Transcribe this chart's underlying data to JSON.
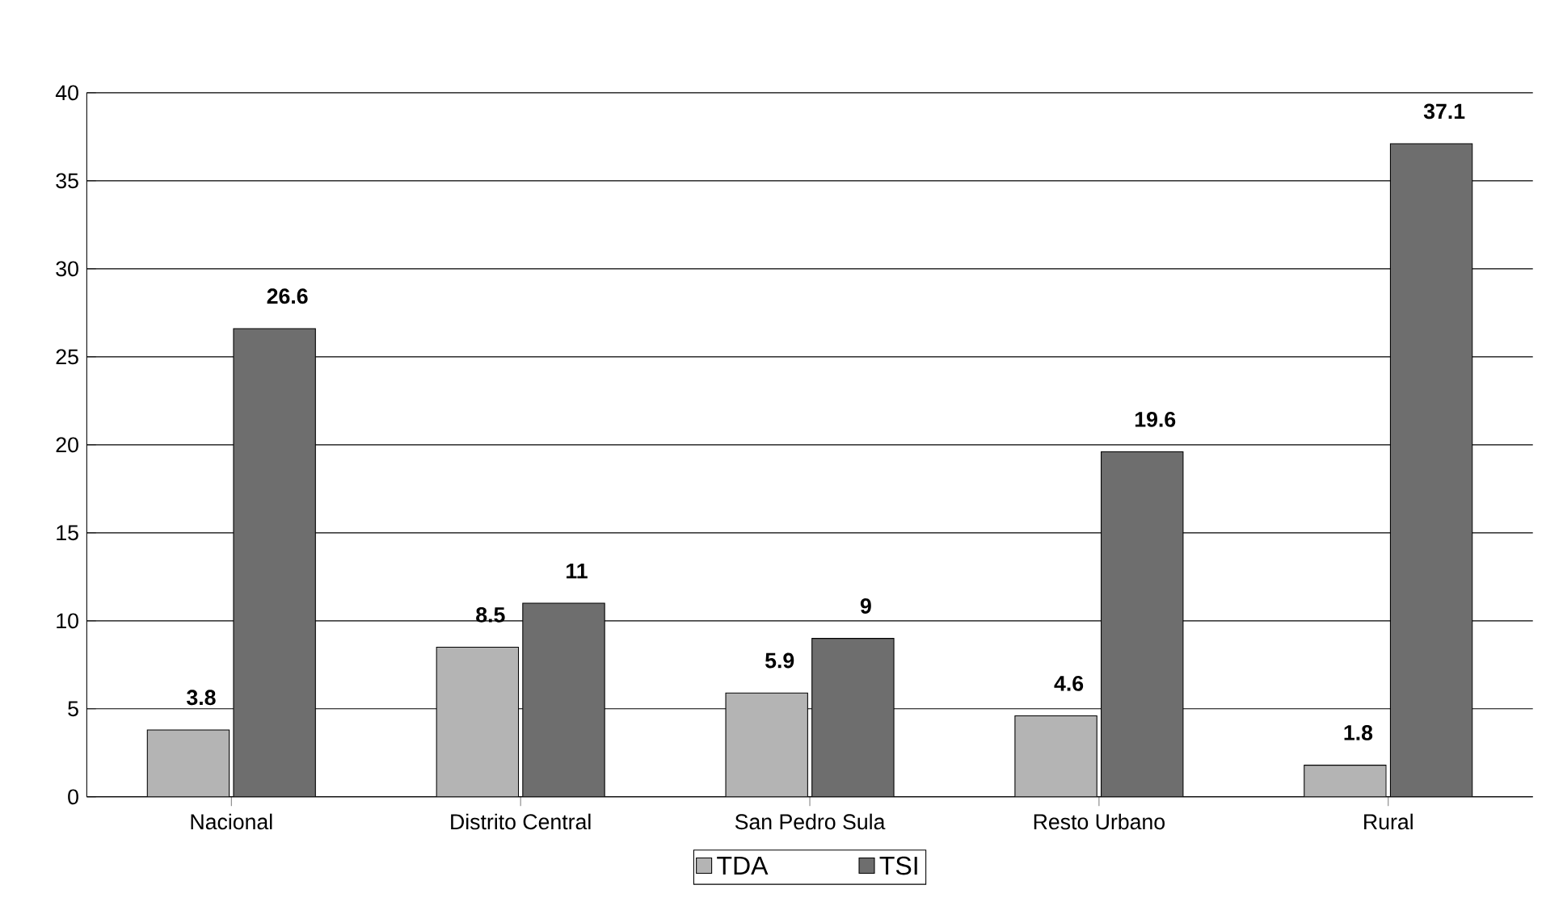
{
  "chart_data": {
    "type": "bar",
    "categories": [
      "Nacional",
      "Distrito Central",
      "San Pedro Sula",
      "Resto Urbano",
      "Rural"
    ],
    "series": [
      {
        "name": "TDA",
        "color": "#b4b4b4",
        "values": [
          3.8,
          8.5,
          5.9,
          4.6,
          1.8
        ]
      },
      {
        "name": "TSI",
        "color": "#6e6e6e",
        "values": [
          26.6,
          11,
          9,
          19.6,
          37.1
        ]
      }
    ],
    "ylim": [
      0,
      40
    ],
    "yticks": [
      0,
      5,
      10,
      15,
      20,
      25,
      30,
      35,
      40
    ],
    "grid": "y",
    "legend": "bottom",
    "data_labels": true
  }
}
